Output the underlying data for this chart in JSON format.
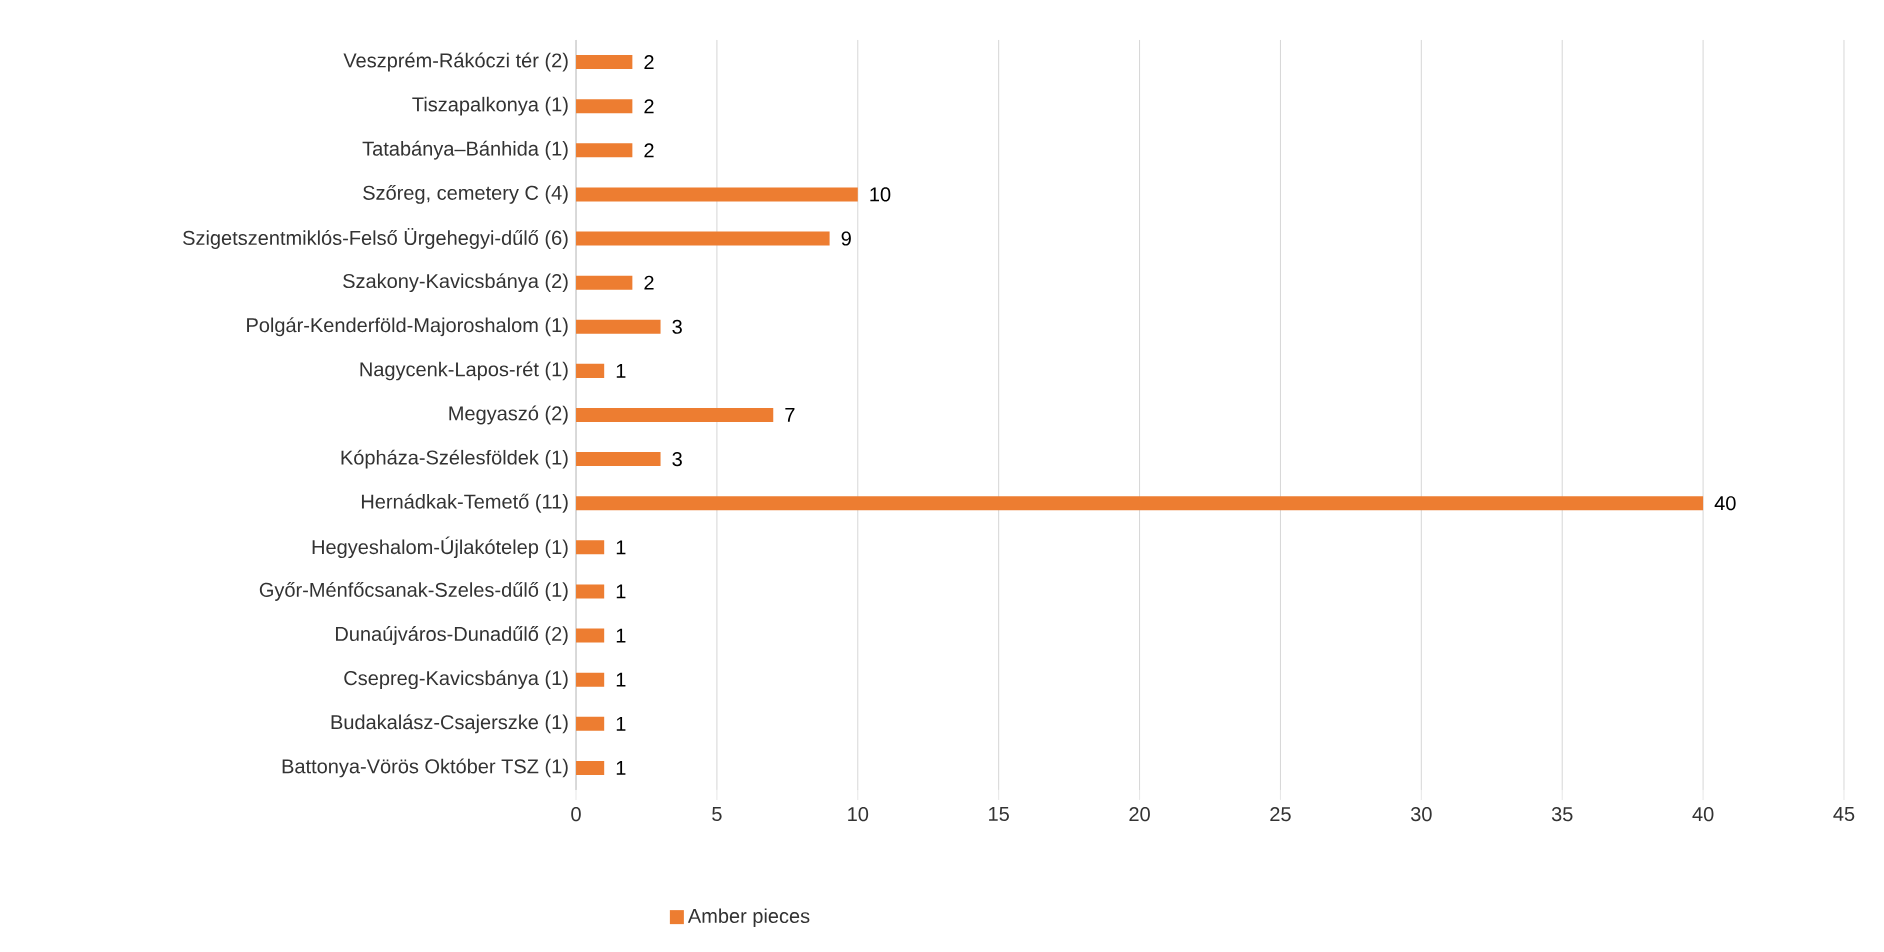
{
  "chart_data": {
    "type": "bar",
    "orientation": "horizontal",
    "categories": [
      "Veszprém-Rákóczi tér (2)",
      "Tiszapalkonya (1)",
      "Tatabánya–Bánhida (1)",
      "Szőreg, cemetery C (4)",
      "Szigetszentmiklós-Felső Ürgehegyi-dűlő (6)",
      "Szakony-Kavicsbánya (2)",
      "Polgár-Kenderföld-Majoroshalom (1)",
      "Nagycenk-Lapos-rét (1)",
      "Megyaszó (2)",
      "Kópháza-Szélesföldek (1)",
      "Hernádkak-Temető (11)",
      "Hegyeshalom-Újlakótelep (1)",
      "Győr-Ménfőcsanak-Szeles-dűlő (1)",
      "Dunaújváros-Dunadűlő (2)",
      "Csepreg-Kavicsbánya (1)",
      "Budakalász-Csajerszke (1)",
      "Battonya-Vörös Október TSZ (1)"
    ],
    "series": [
      {
        "name": "Amber pieces",
        "color": "#ed7d31",
        "values": [
          2,
          2,
          2,
          10,
          9,
          2,
          3,
          1,
          7,
          3,
          40,
          1,
          1,
          1,
          1,
          1,
          1
        ]
      }
    ],
    "xlim": [
      0,
      45
    ],
    "xticks": [
      0,
      5,
      10,
      15,
      20,
      25,
      30,
      35,
      40,
      45
    ],
    "grid": "x",
    "legend": "bottom",
    "data_labels": true
  }
}
